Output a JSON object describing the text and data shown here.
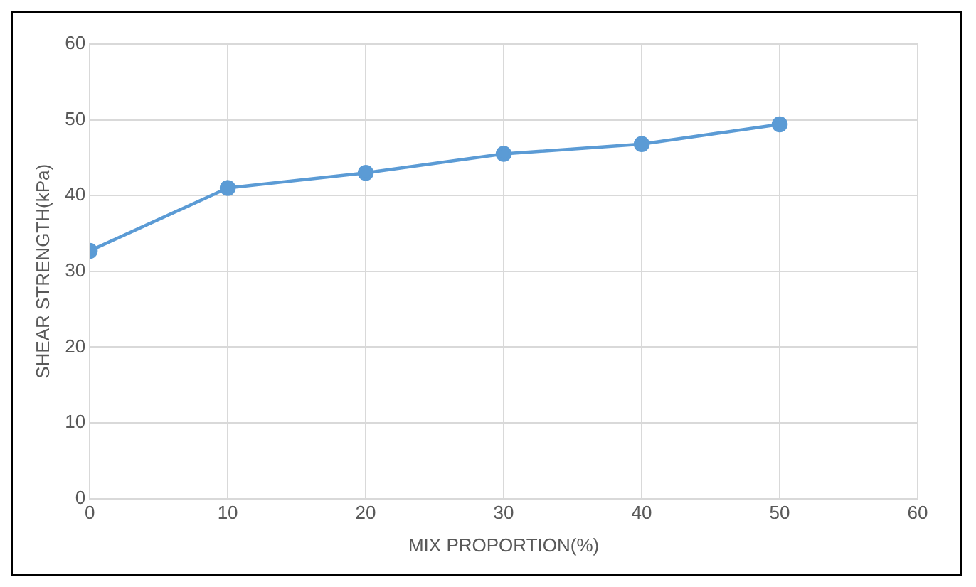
{
  "chart_data": {
    "type": "line",
    "xlabel": "MIX PROPORTION(%)",
    "ylabel": "SHEAR STRENGTH(kPa)",
    "x": [
      0,
      10,
      20,
      30,
      40,
      50
    ],
    "series": [
      {
        "color": "#5b9bd5",
        "values": [
          32.7,
          41,
          43,
          45.5,
          46.8,
          49.4
        ]
      }
    ],
    "xlim": [
      0,
      60
    ],
    "xticks": [
      0,
      10,
      20,
      30,
      40,
      50,
      60
    ],
    "ylim": [
      0,
      60
    ],
    "yticks": [
      0,
      10,
      20,
      30,
      40,
      50,
      60
    ],
    "grid": true,
    "legend": false,
    "marker": "circle",
    "line_style": "solid"
  }
}
